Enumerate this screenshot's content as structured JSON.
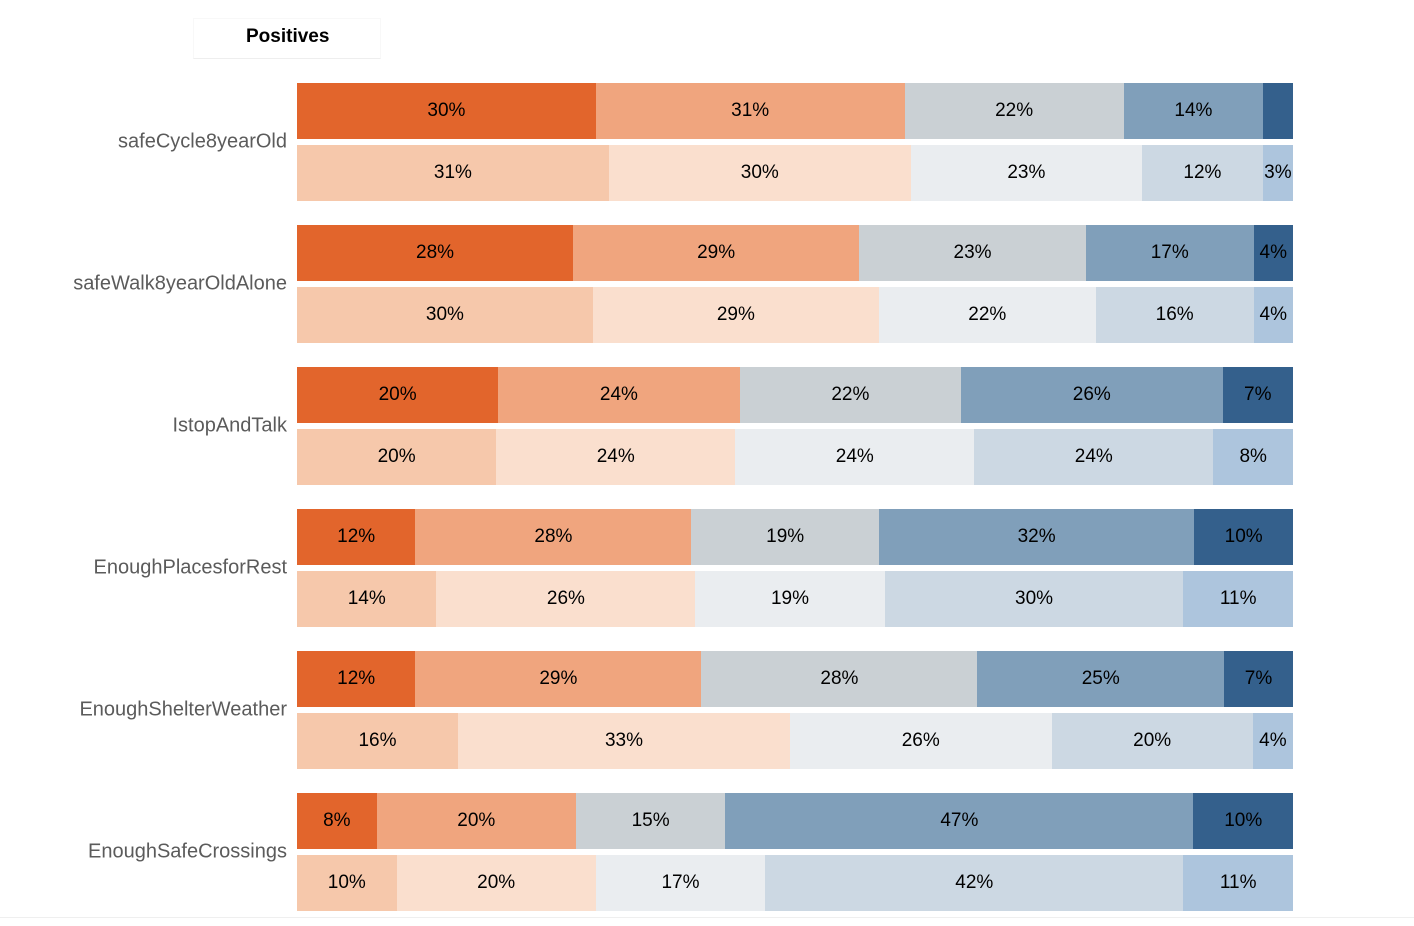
{
  "page": {
    "background": "#ffffff",
    "title_text": "Positives"
  },
  "chart_data": {
    "type": "bar",
    "variant": "diverging-stacked-likert",
    "orientation": "horizontal",
    "stacked": true,
    "title": "Positives",
    "value_format": "percent",
    "legend_position": "none",
    "grid": false,
    "axis_labels": "none (values labeled inside segments; each category has a saturated top bar and a lighter bottom bar)",
    "categories": [
      "safeCycle8yearOld",
      "safeWalk8yearOldAlone",
      "IstopAndTalk",
      "EnoughPlacesforRest",
      "EnoughShelterWeather",
      "EnoughSafeCrossings"
    ],
    "palette_top": [
      "#e2652c",
      "#f0a57e",
      "#cad0d4",
      "#809fba",
      "#34608c"
    ],
    "palette_bottom": [
      "#f6c8ab",
      "#fadfce",
      "#eaedf0",
      "#ccd8e3",
      "#adc5dd"
    ],
    "category_label_color": "#5b5b5b",
    "segment_text_color": "#000000",
    "rows": [
      {
        "category": "safeCycle8yearOld",
        "top": {
          "values": [
            30,
            31,
            22,
            14,
            3
          ],
          "labels": [
            "30%",
            "31%",
            "22%",
            "14%",
            ""
          ]
        },
        "bottom": {
          "values": [
            31,
            30,
            23,
            12,
            3
          ],
          "labels": [
            "31%",
            "30%",
            "23%",
            "12%",
            "3%"
          ]
        }
      },
      {
        "category": "safeWalk8yearOldAlone",
        "top": {
          "values": [
            28,
            29,
            23,
            17,
            4
          ],
          "labels": [
            "28%",
            "29%",
            "23%",
            "17%",
            "4%"
          ]
        },
        "bottom": {
          "values": [
            30,
            29,
            22,
            16,
            4
          ],
          "labels": [
            "30%",
            "29%",
            "22%",
            "16%",
            "4%"
          ]
        }
      },
      {
        "category": "IstopAndTalk",
        "top": {
          "values": [
            20,
            24,
            22,
            26,
            7
          ],
          "labels": [
            "20%",
            "24%",
            "22%",
            "26%",
            "7%"
          ]
        },
        "bottom": {
          "values": [
            20,
            24,
            24,
            24,
            8
          ],
          "labels": [
            "20%",
            "24%",
            "24%",
            "24%",
            "8%"
          ]
        }
      },
      {
        "category": "EnoughPlacesforRest",
        "top": {
          "values": [
            12,
            28,
            19,
            32,
            10
          ],
          "labels": [
            "12%",
            "28%",
            "19%",
            "32%",
            "10%"
          ]
        },
        "bottom": {
          "values": [
            14,
            26,
            19,
            30,
            11
          ],
          "labels": [
            "14%",
            "26%",
            "19%",
            "30%",
            "11%"
          ]
        }
      },
      {
        "category": "EnoughShelterWeather",
        "top": {
          "values": [
            12,
            29,
            28,
            25,
            7
          ],
          "labels": [
            "12%",
            "29%",
            "28%",
            "25%",
            "7%"
          ]
        },
        "bottom": {
          "values": [
            16,
            33,
            26,
            20,
            4
          ],
          "labels": [
            "16%",
            "33%",
            "26%",
            "20%",
            "4%"
          ]
        }
      },
      {
        "category": "EnoughSafeCrossings",
        "top": {
          "values": [
            8,
            20,
            15,
            47,
            10
          ],
          "labels": [
            "8%",
            "20%",
            "15%",
            "47%",
            "10%"
          ]
        },
        "bottom": {
          "values": [
            10,
            20,
            17,
            42,
            11
          ],
          "labels": [
            "10%",
            "20%",
            "17%",
            "42%",
            "11%"
          ]
        }
      }
    ]
  }
}
